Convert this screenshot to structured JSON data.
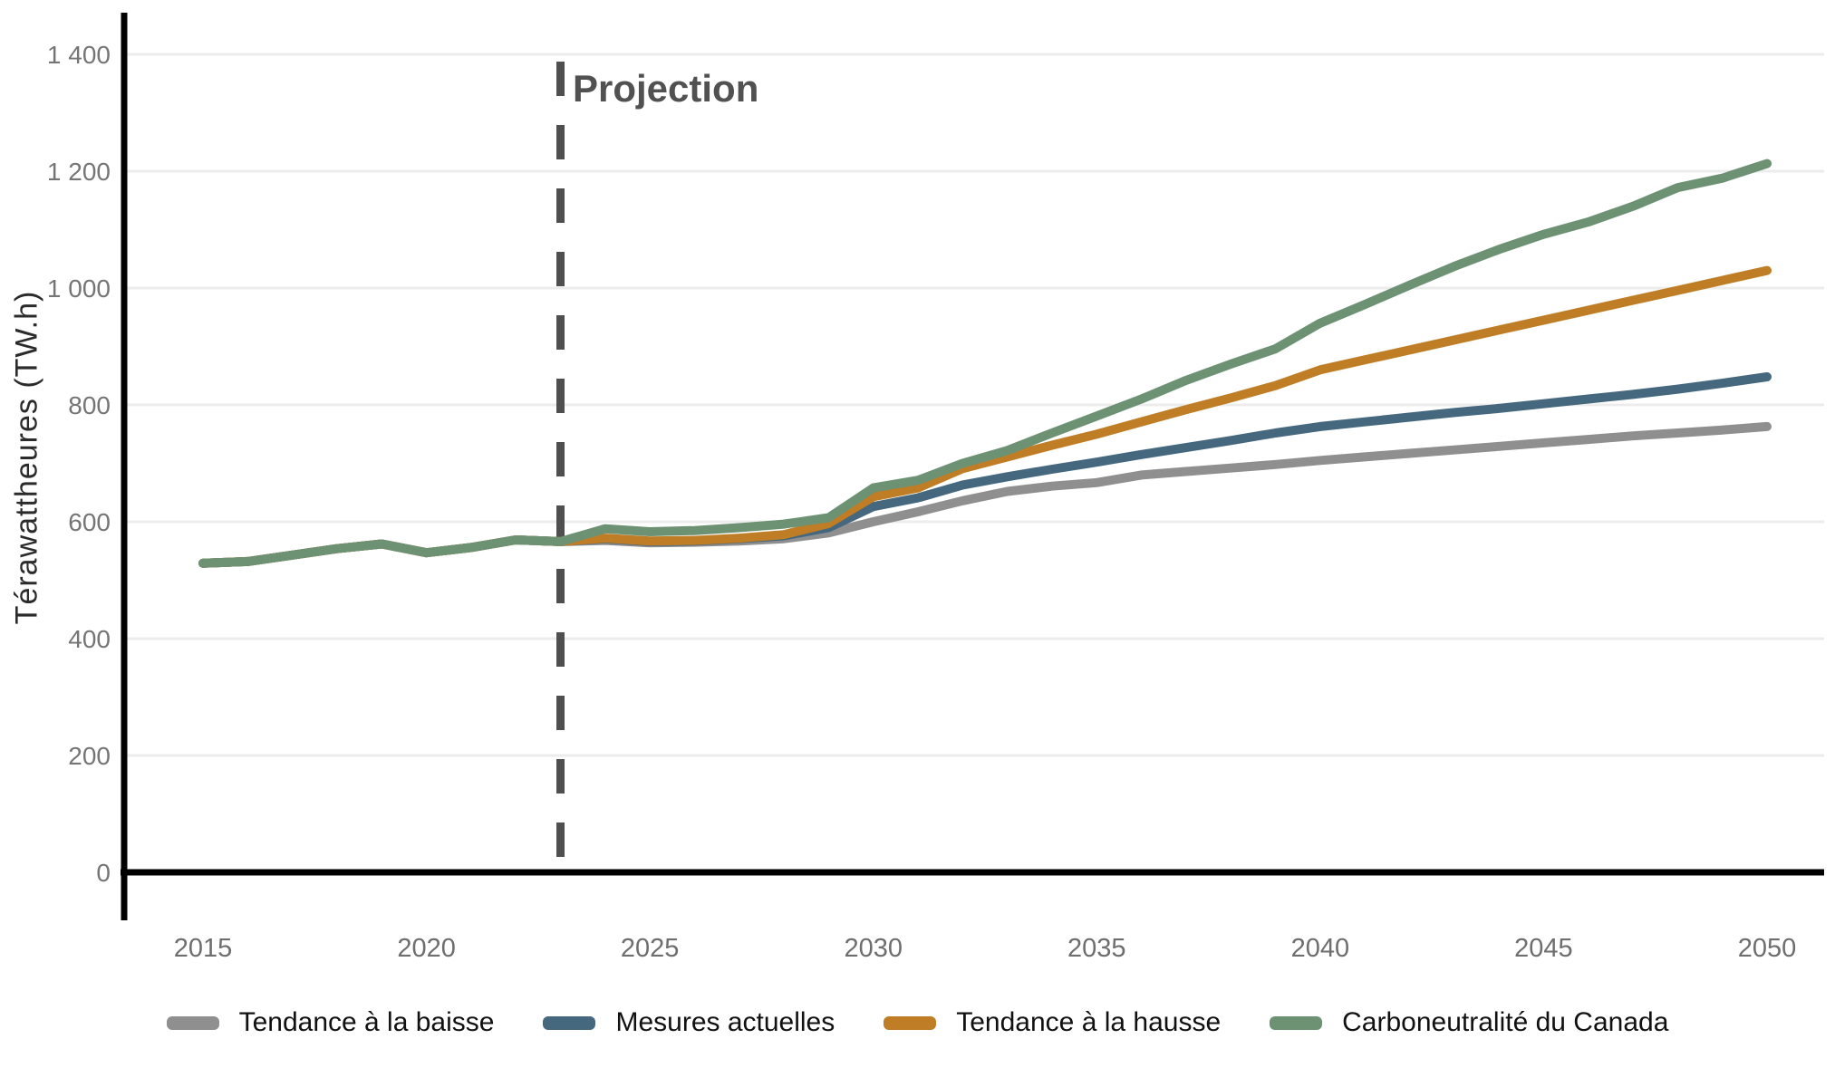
{
  "chart_data": {
    "type": "line",
    "title": "",
    "xlabel": "",
    "ylabel": "Térawattheures (TW.h)",
    "ylim": [
      0,
      1450
    ],
    "xlim": [
      2013,
      2051
    ],
    "grid": "horizontal",
    "legend_position": "bottom",
    "annotation": {
      "label": "Projection",
      "x": 2023,
      "line_color": "#4f4f4f"
    },
    "x": [
      2015,
      2016,
      2017,
      2018,
      2019,
      2020,
      2021,
      2022,
      2023,
      2024,
      2025,
      2026,
      2027,
      2028,
      2029,
      2030,
      2031,
      2032,
      2033,
      2034,
      2035,
      2036,
      2037,
      2038,
      2039,
      2040,
      2041,
      2042,
      2043,
      2044,
      2045,
      2046,
      2047,
      2048,
      2049,
      2050
    ],
    "x_ticks": [
      "2015",
      "2020",
      "2025",
      "2030",
      "2035",
      "2040",
      "2045",
      "2050"
    ],
    "y_ticks": [
      {
        "value": 0,
        "label": "0"
      },
      {
        "value": 200,
        "label": "200"
      },
      {
        "value": 400,
        "label": "400"
      },
      {
        "value": 600,
        "label": "600"
      },
      {
        "value": 800,
        "label": "800"
      },
      {
        "value": 1000,
        "label": "1 000"
      },
      {
        "value": 1200,
        "label": "1 200"
      },
      {
        "value": 1400,
        "label": "1 400"
      }
    ],
    "series": [
      {
        "name": "Tendance à la baisse",
        "color": "#8f8f8f",
        "values": [
          529,
          532,
          543,
          554,
          562,
          547,
          556,
          569,
          566,
          568,
          564,
          565,
          567,
          571,
          581,
          600,
          617,
          636,
          652,
          661,
          667,
          680,
          686,
          692,
          698,
          705,
          711,
          717,
          723,
          729,
          735,
          741,
          747,
          752,
          757,
          763
        ]
      },
      {
        "name": "Mesures actuelles",
        "color": "#45687f",
        "values": [
          529,
          532,
          543,
          554,
          562,
          547,
          556,
          569,
          566,
          571,
          566,
          567,
          571,
          576,
          590,
          626,
          641,
          663,
          677,
          690,
          702,
          715,
          727,
          739,
          752,
          763,
          771,
          779,
          787,
          794,
          802,
          810,
          818,
          827,
          837,
          848
        ]
      },
      {
        "name": "Tendance à la hausse",
        "color": "#bf7d25",
        "values": [
          529,
          532,
          543,
          554,
          562,
          547,
          556,
          569,
          566,
          572,
          567,
          568,
          572,
          578,
          597,
          643,
          658,
          691,
          711,
          731,
          750,
          771,
          792,
          812,
          833,
          860,
          877,
          894,
          911,
          928,
          945,
          962,
          979,
          996,
          1013,
          1030
        ]
      },
      {
        "name": "Carboneutralité du Canada",
        "color": "#6d9173",
        "values": [
          529,
          532,
          543,
          554,
          562,
          547,
          556,
          569,
          566,
          588,
          583,
          585,
          590,
          596,
          607,
          658,
          671,
          700,
          722,
          752,
          781,
          810,
          842,
          870,
          896,
          940,
          972,
          1005,
          1037,
          1066,
          1092,
          1113,
          1140,
          1172,
          1188,
          1213
        ]
      }
    ]
  }
}
